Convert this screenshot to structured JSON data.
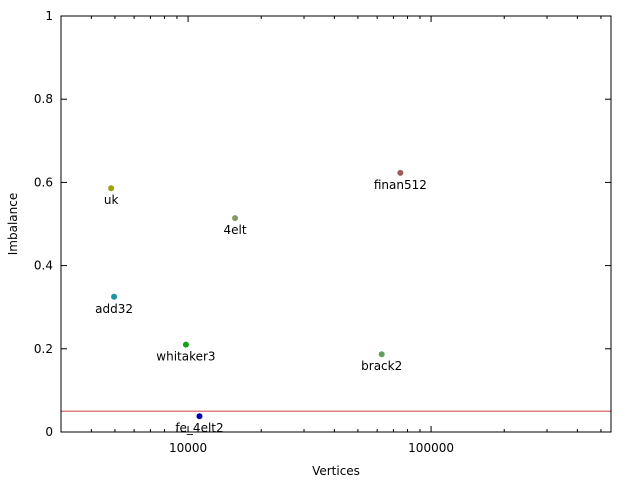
{
  "chart_data": {
    "type": "scatter",
    "xlabel": "Vertices",
    "ylabel": "Imbalance",
    "x_scale": "log",
    "xlim": [
      3000,
      550000
    ],
    "ylim": [
      0,
      1
    ],
    "x_ticks": [
      {
        "value": 10000,
        "label": "10000"
      },
      {
        "value": 100000,
        "label": "100000"
      }
    ],
    "y_ticks": [
      {
        "value": 0,
        "label": "0"
      },
      {
        "value": 0.2,
        "label": "0.2"
      },
      {
        "value": 0.4,
        "label": "0.4"
      },
      {
        "value": 0.6,
        "label": "0.6"
      },
      {
        "value": 0.8,
        "label": "0.8"
      },
      {
        "value": 1,
        "label": "1"
      }
    ],
    "grid": false,
    "reference_line": {
      "y": 0.05,
      "color": "#e08080"
    },
    "points": [
      {
        "label": "uk",
        "x": 4824,
        "y": 0.586,
        "color": "#a0a000"
      },
      {
        "label": "add32",
        "x": 4960,
        "y": 0.325,
        "color": "#1a93a4"
      },
      {
        "label": "whitaker3",
        "x": 9800,
        "y": 0.21,
        "color": "#16a016"
      },
      {
        "label": "fe_4elt2",
        "x": 11143,
        "y": 0.038,
        "color": "#0000aa"
      },
      {
        "label": "4elt",
        "x": 15606,
        "y": 0.514,
        "color": "#8a9a66"
      },
      {
        "label": "brack2",
        "x": 62631,
        "y": 0.187,
        "color": "#5fa05f"
      },
      {
        "label": "finan512",
        "x": 74752,
        "y": 0.623,
        "color": "#a05a5a"
      }
    ]
  }
}
